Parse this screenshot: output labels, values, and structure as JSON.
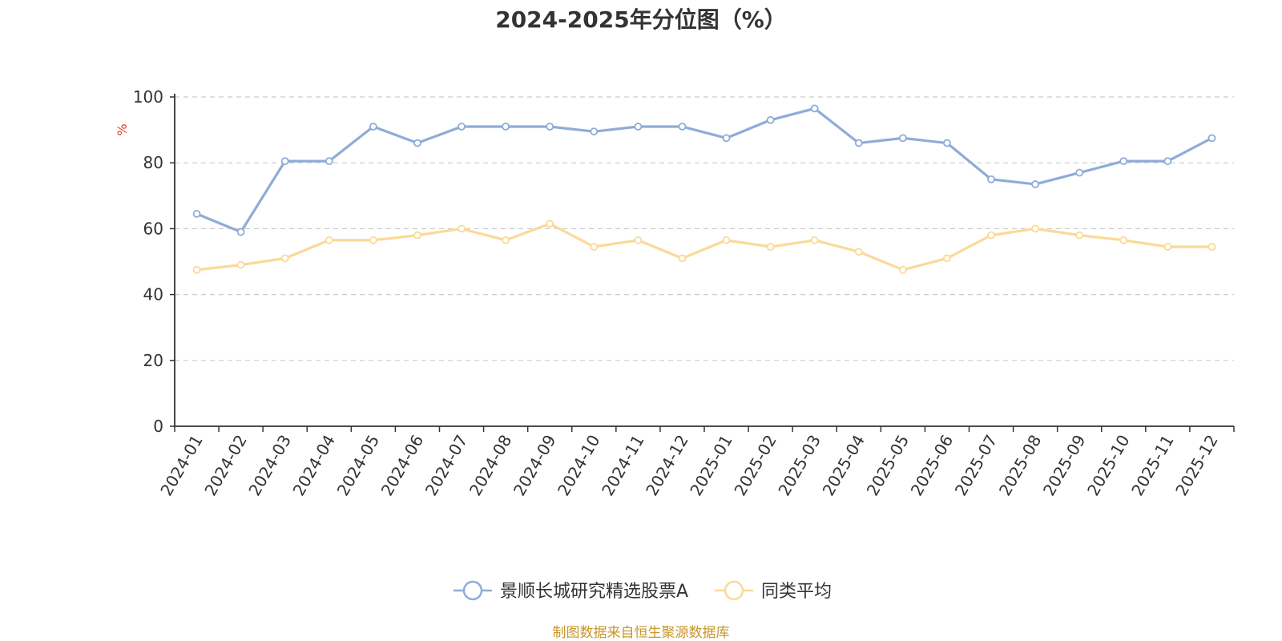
{
  "chart_data": {
    "type": "line",
    "title": "2024-2025年分位图（%）",
    "ylabel": "%",
    "ylim": [
      0,
      100
    ],
    "yticks": [
      "0",
      "20",
      "40",
      "60",
      "80",
      "100"
    ],
    "grid": true,
    "legend_position": "bottom-center",
    "categories": [
      "2024-01",
      "2024-02",
      "2024-03",
      "2024-04",
      "2024-05",
      "2024-06",
      "2024-07",
      "2024-08",
      "2024-09",
      "2024-10",
      "2024-11",
      "2024-12",
      "2025-01",
      "2025-02",
      "2025-03",
      "2025-04",
      "2025-05",
      "2025-06",
      "2025-07",
      "2025-08",
      "2025-09",
      "2025-10",
      "2025-11",
      "2025-12"
    ],
    "series": [
      {
        "name": "景顺长城研究精选股票A",
        "color": "#8eacd8",
        "values": [
          64.5,
          59,
          80.5,
          80.5,
          91,
          86,
          91,
          91,
          91,
          89.5,
          91,
          91,
          87.5,
          93,
          96.5,
          86,
          87.5,
          86,
          75,
          73.5,
          77,
          80.5,
          80.5,
          87.5
        ]
      },
      {
        "name": "同类平均",
        "color": "#fbd997",
        "values": [
          47.5,
          49,
          51,
          56.5,
          56.5,
          58,
          60,
          56.5,
          61.5,
          54.5,
          56.5,
          51,
          56.5,
          54.5,
          56.5,
          53,
          47.5,
          51,
          58,
          60,
          58,
          56.5,
          54.5,
          54.5
        ]
      }
    ]
  },
  "source_text": "制图数据来自恒生聚源数据库",
  "colors": {
    "ylabel": "#e8382f",
    "source": "#c8962a",
    "axis": "#333333",
    "grid": "#cccccc"
  }
}
